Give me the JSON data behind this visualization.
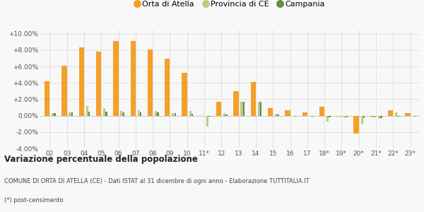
{
  "years": [
    "02",
    "03",
    "04",
    "05",
    "06",
    "07",
    "08",
    "09",
    "10",
    "11*",
    "12",
    "13",
    "14",
    "15",
    "16",
    "17",
    "18*",
    "19*",
    "20*",
    "21*",
    "22*",
    "23*"
  ],
  "orta": [
    4.2,
    6.1,
    8.3,
    7.8,
    9.1,
    9.1,
    8.1,
    7.0,
    5.2,
    0.0,
    1.7,
    3.0,
    4.1,
    0.9,
    0.7,
    0.4,
    1.1,
    -0.1,
    -2.2,
    -0.2,
    0.7,
    0.3
  ],
  "provincia": [
    0.3,
    0.4,
    1.2,
    0.9,
    0.6,
    0.7,
    0.6,
    0.3,
    0.6,
    -1.3,
    0.3,
    1.7,
    1.7,
    0.2,
    0.0,
    -0.1,
    -0.7,
    -0.3,
    -1.0,
    -0.4,
    0.4,
    -0.1
  ],
  "campania": [
    0.3,
    0.4,
    0.5,
    0.5,
    0.4,
    0.4,
    0.4,
    0.3,
    0.2,
    -0.1,
    0.1,
    1.7,
    1.7,
    0.1,
    -0.1,
    -0.1,
    -0.2,
    -0.2,
    -0.3,
    -0.3,
    -0.1,
    -0.1
  ],
  "orta_color": "#f5a028",
  "provincia_color": "#b8cc88",
  "campania_color": "#6b8c3e",
  "bg_color": "#f8f8f8",
  "ylim": [
    -4.0,
    10.5
  ],
  "yticks": [
    -4.0,
    -2.0,
    0.0,
    2.0,
    4.0,
    6.0,
    8.0,
    10.0
  ],
  "title_bold": "Variazione percentuale della popolazione",
  "subtitle1": "COMUNE DI ORTA DI ATELLA (CE) - Dati ISTAT al 31 dicembre di ogni anno - Elaborazione TUTTITALIA.IT",
  "subtitle2": "(*) post-censimento",
  "legend_labels": [
    "Orta di Atella",
    "Provincia di CE",
    "Campania"
  ]
}
